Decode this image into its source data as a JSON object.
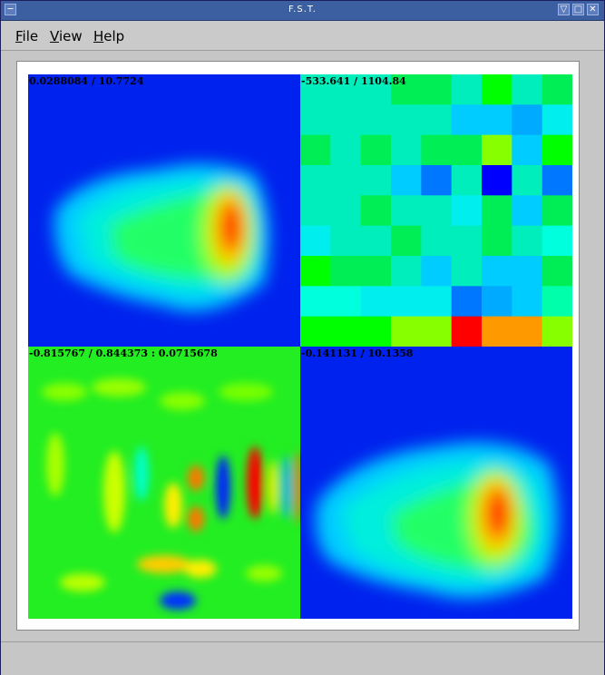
{
  "window": {
    "title": "F.S.T.",
    "buttons": {
      "menu": "─",
      "minimize": "▽",
      "maximize": "□",
      "close": "✕"
    }
  },
  "menubar": {
    "items": [
      {
        "pre": "",
        "u": "F",
        "post": "ile"
      },
      {
        "pre": "",
        "u": "V",
        "post": "iew"
      },
      {
        "pre": "",
        "u": "H",
        "post": "elp"
      }
    ]
  },
  "quadrants": [
    {
      "name": "top-left",
      "label": "0.0288084 / 10.7724"
    },
    {
      "name": "top-right",
      "label": "-533.641 / 1104.84"
    },
    {
      "name": "bottom-left",
      "label": "-0.815767 / 0.844373 : 0.0715678"
    },
    {
      "name": "bottom-right",
      "label": "-0.141131 / 10.1358"
    }
  ],
  "colors": {
    "titlebar": "#3b5fa0",
    "colormap": [
      "#0000ff",
      "#00aaff",
      "#00ffff",
      "#00ff55",
      "#66ff00",
      "#ffff00",
      "#ffaa00",
      "#ff0000"
    ]
  }
}
